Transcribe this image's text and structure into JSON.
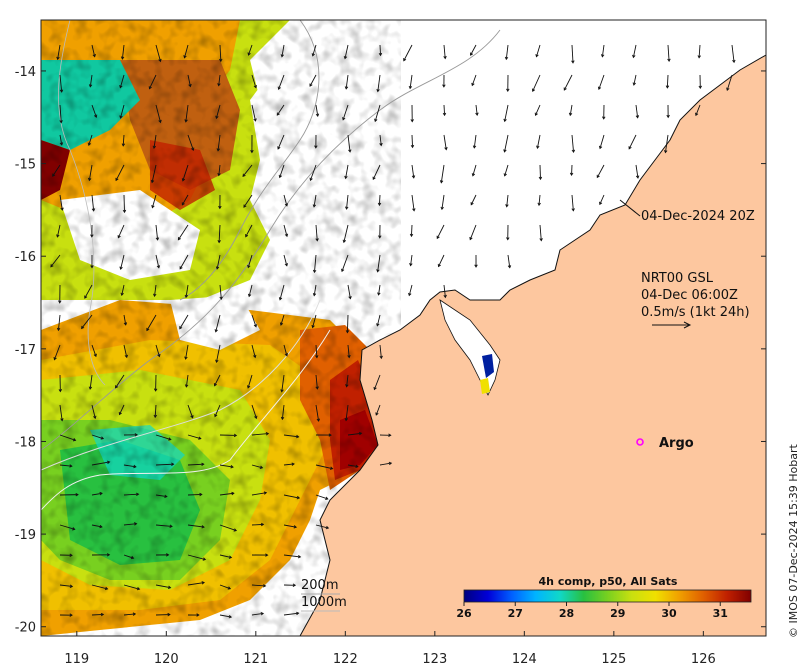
{
  "map": {
    "lon_ticks": [
      "119",
      "120",
      "121",
      "122",
      "123",
      "124",
      "125",
      "126"
    ],
    "lat_ticks": [
      "-14",
      "-15",
      "-16",
      "-17",
      "-18",
      "-19",
      "-20"
    ],
    "lon_range": [
      118.6,
      126.7
    ],
    "lat_range": [
      -20.1,
      -13.45
    ]
  },
  "labels": {
    "sst_date": "04-Dec-2024 20Z",
    "current_source": "NRT00 GSL",
    "current_time": "04-Dec 06:00Z",
    "current_scale": "0.5m/s (1kt 24h)",
    "argo": "Argo",
    "iso_200": "200m",
    "iso_1000": "1000m",
    "colorbar_title": "4h comp, p50, All Sats",
    "copyright": "© IMOS 07-Dec-2024 15:39 Hobart"
  },
  "colorbar": {
    "ticks": [
      "26",
      "27",
      "28",
      "29",
      "30",
      "31"
    ],
    "range": [
      26,
      31.6
    ],
    "colors": [
      "#00007f",
      "#0000d8",
      "#0060ff",
      "#00b4ff",
      "#10d8c8",
      "#28c040",
      "#78d020",
      "#c8e010",
      "#f0e000",
      "#f0a000",
      "#e06000",
      "#c02000",
      "#800000"
    ]
  },
  "colors": {
    "land": "#fdc79f",
    "coast": "#111111",
    "argo_marker": "#ff00ff"
  }
}
